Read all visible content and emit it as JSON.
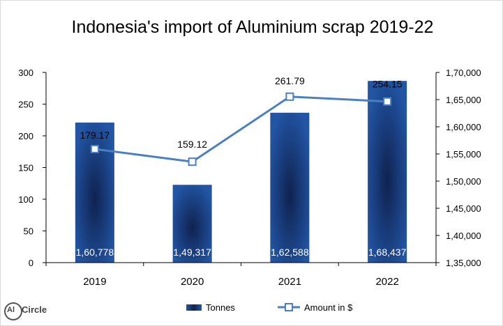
{
  "chart_data": {
    "type": "bar",
    "title": "Indonesia's import of Aluminium scrap 2019-22",
    "categories": [
      "2019",
      "2020",
      "2021",
      "2022"
    ],
    "series": [
      {
        "name": "Tonnes",
        "type": "bar",
        "axis": "right",
        "values": [
          160778,
          149317,
          162588,
          168437
        ],
        "value_labels": [
          "1,60,778",
          "1,49,317",
          "1,62,588",
          "1,68,437"
        ],
        "color": "#1f4e9c"
      },
      {
        "name": "Amount in $",
        "type": "line",
        "axis": "left",
        "values": [
          179.17,
          159.12,
          261.79,
          254.15
        ],
        "value_labels": [
          "179.17",
          "159.12",
          "261.79",
          "254.15"
        ],
        "color": "#4a7fc1"
      }
    ],
    "y_left": {
      "ylim": [
        0,
        300
      ],
      "ticks": [
        0,
        50,
        100,
        150,
        200,
        250,
        300
      ],
      "tick_labels": [
        "0",
        "50",
        "100",
        "150",
        "200",
        "250",
        "300"
      ]
    },
    "y_right": {
      "ylim": [
        135000,
        170000
      ],
      "ticks": [
        135000,
        140000,
        145000,
        150000,
        155000,
        160000,
        165000,
        170000
      ],
      "tick_labels": [
        "1,35,000",
        "1,40,000",
        "1,45,000",
        "1,50,000",
        "1,55,000",
        "1,60,000",
        "1,65,000",
        "1,70,000"
      ]
    },
    "grid": false,
    "legend": "bottom"
  },
  "logo": {
    "al": "Al",
    "circle": "Circle"
  }
}
